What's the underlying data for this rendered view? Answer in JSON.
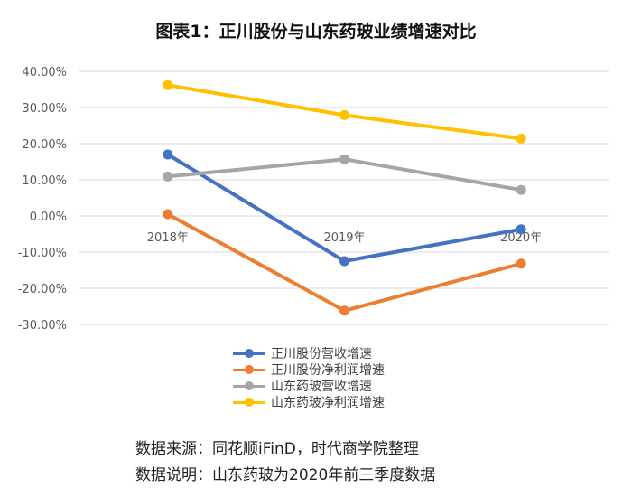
{
  "title": "图表1：正川股份与山东药玻业绩增速对比",
  "chart_data": {
    "type": "line",
    "categories": [
      "2018年",
      "2019年",
      "2020年"
    ],
    "y_ticks": [
      "40.00%",
      "30.00%",
      "20.00%",
      "10.00%",
      "0.00%",
      "-10.00%",
      "-20.00%",
      "-30.00%"
    ],
    "ylim": [
      -30,
      40
    ],
    "grid": true,
    "legend_position": "bottom",
    "series": [
      {
        "name": "正川股份营收增速",
        "color": "#4472C4",
        "values": [
          17.0,
          -12.5,
          -3.7
        ]
      },
      {
        "name": "正川股份净利润增速",
        "color": "#ED7D31",
        "values": [
          0.5,
          -26.2,
          -13.2
        ]
      },
      {
        "name": "山东药玻营收增速",
        "color": "#A5A5A5",
        "values": [
          10.9,
          15.7,
          7.2
        ]
      },
      {
        "name": "山东药玻净利润增速",
        "color": "#FFC000",
        "values": [
          36.2,
          27.9,
          21.4
        ]
      }
    ]
  },
  "footer": {
    "source": "数据来源：同花顺iFinD，时代商学院整理",
    "note": "数据说明：山东药玻为2020年前三季度数据"
  }
}
